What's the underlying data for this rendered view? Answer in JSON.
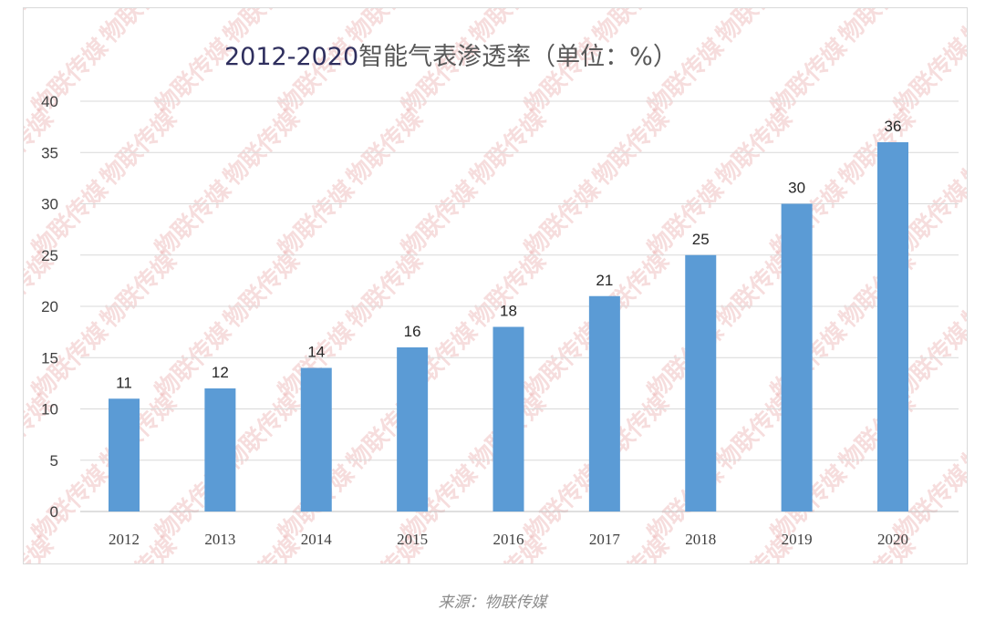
{
  "chart_data": {
    "type": "bar",
    "title": "2012-2020智能气表渗透率（单位：%）",
    "categories": [
      "2012",
      "2013",
      "2014",
      "2015",
      "2016",
      "2017",
      "2018",
      "2019",
      "2020"
    ],
    "values": [
      11,
      12,
      14,
      16,
      18,
      21,
      25,
      30,
      36
    ],
    "y_ticks": [
      "0",
      "5",
      "10",
      "15",
      "20",
      "25",
      "30",
      "35",
      "40"
    ],
    "ylim": [
      0,
      40
    ],
    "grid": true,
    "legend": "none",
    "bar_color": "#5b9bd5"
  },
  "watermark": "物联传媒",
  "source": "来源：物联传媒"
}
